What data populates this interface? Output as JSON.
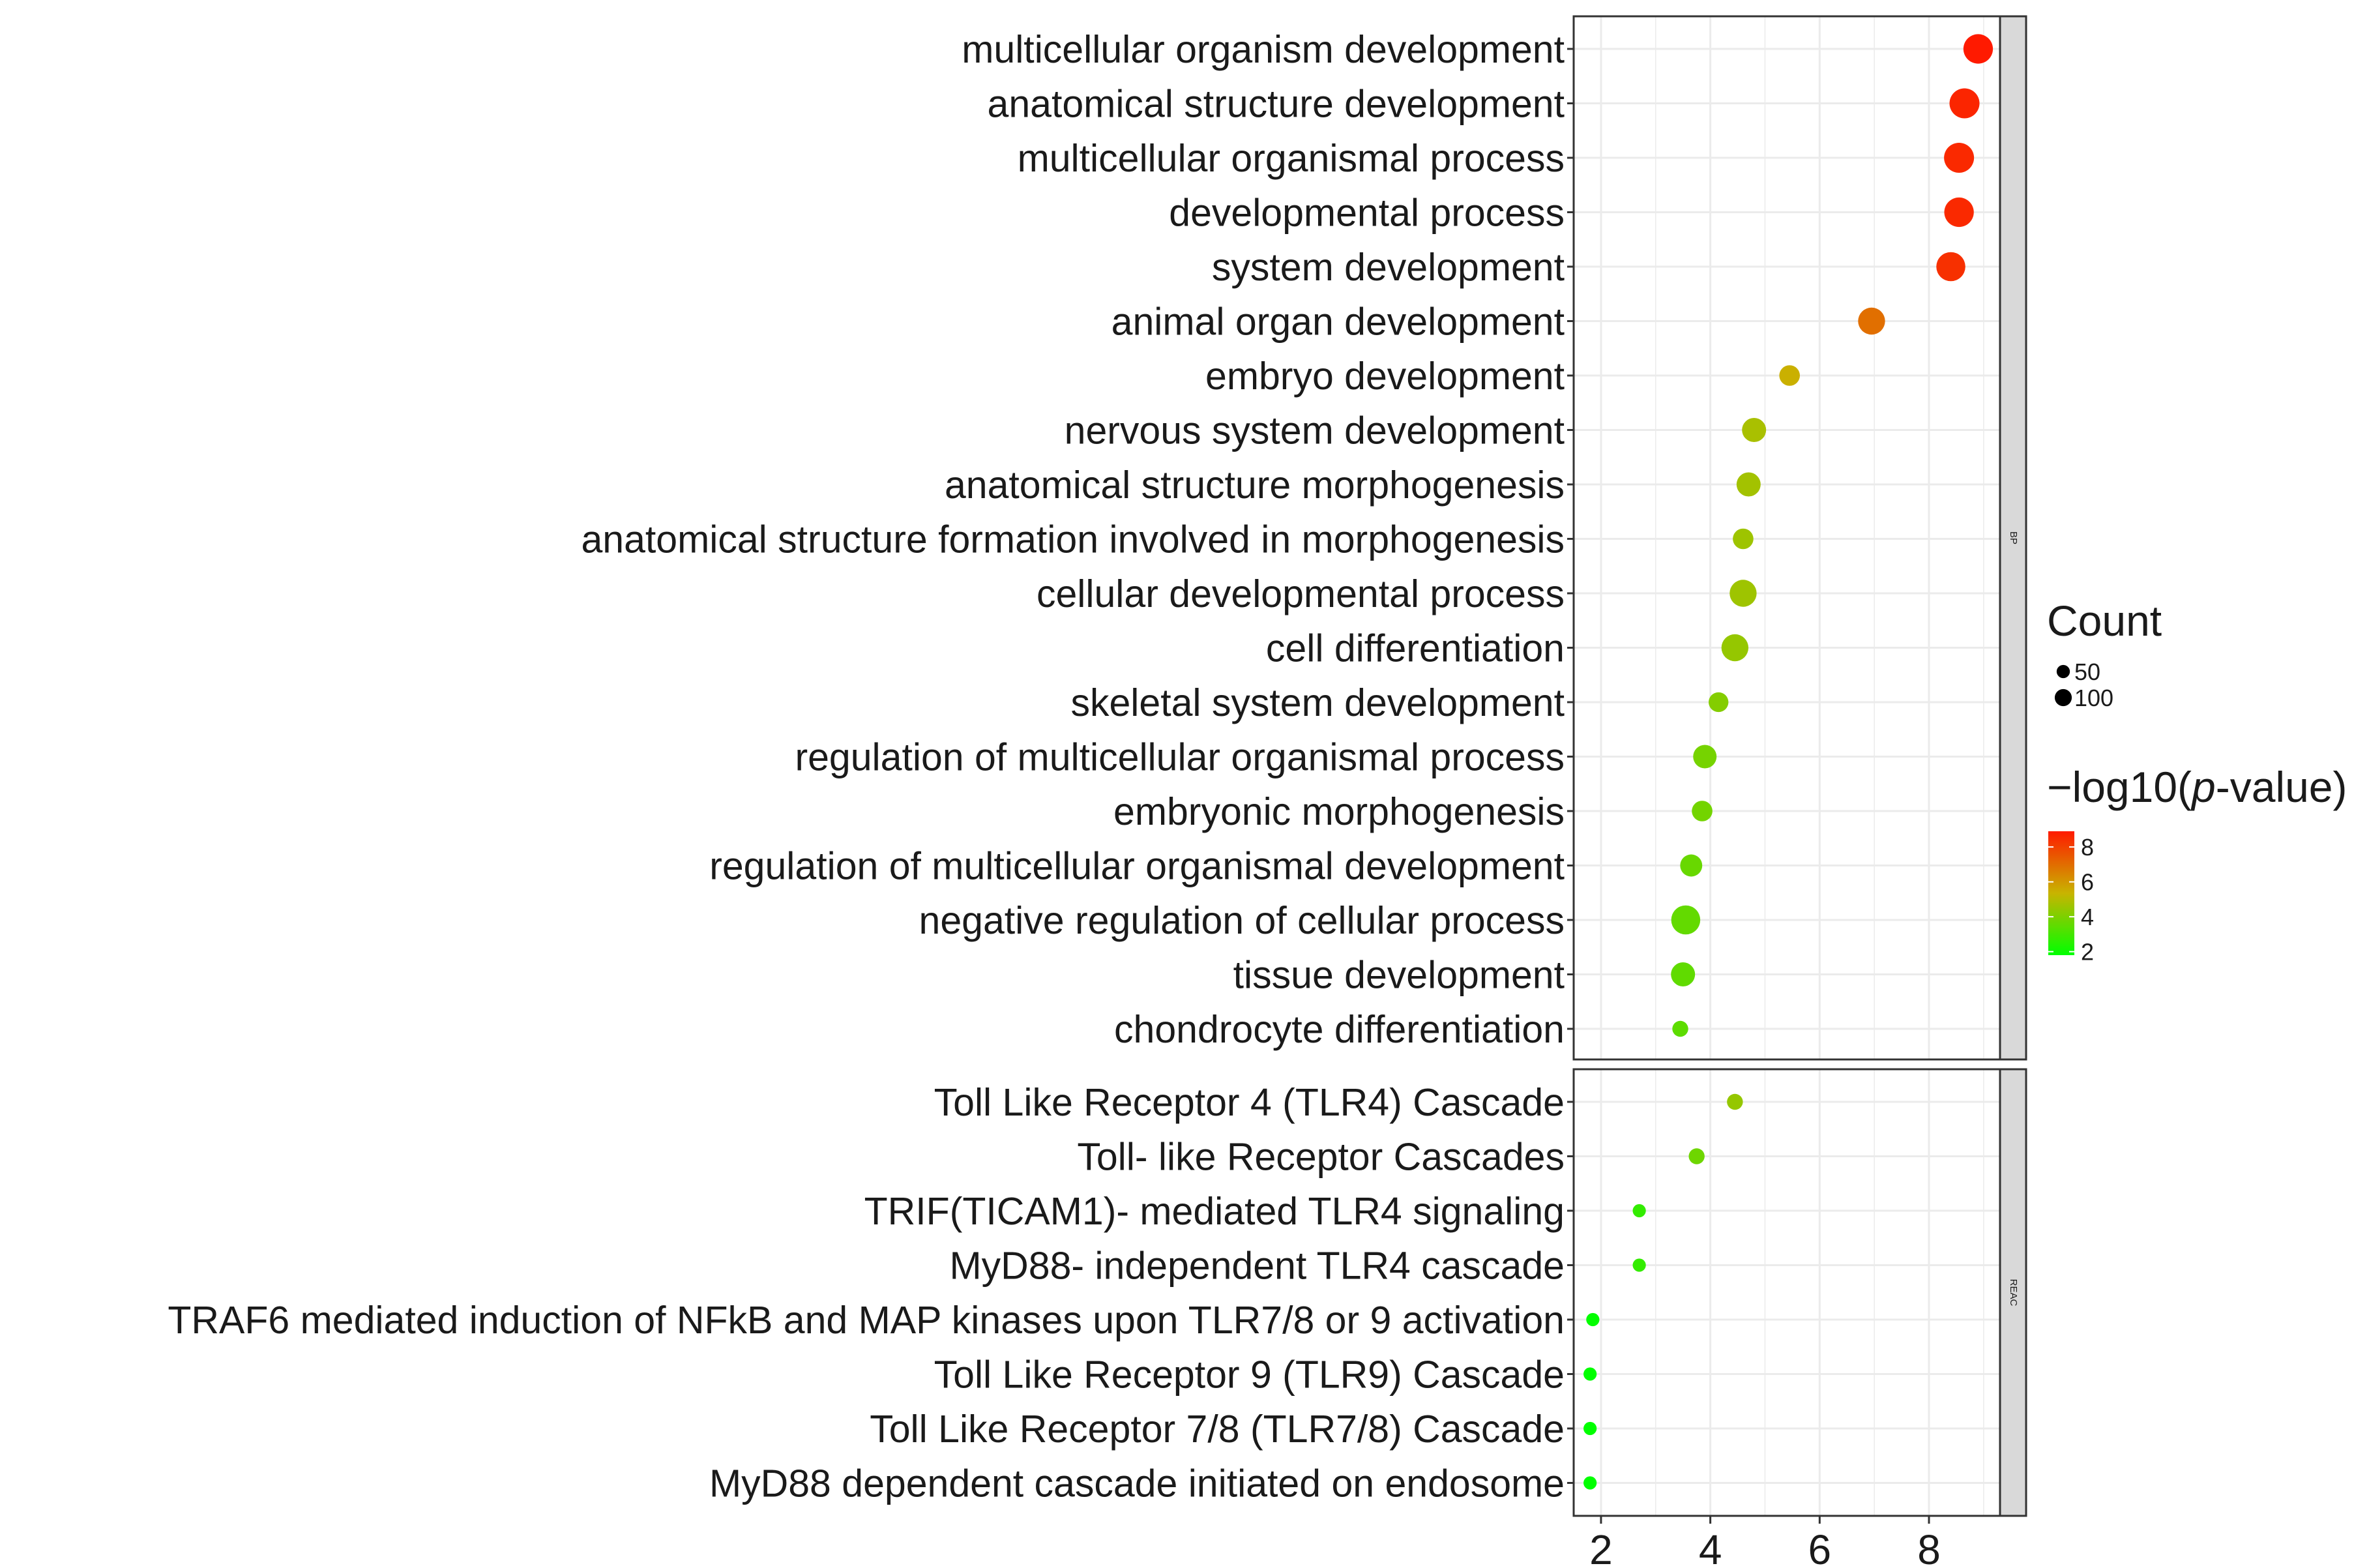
{
  "chart_data": {
    "type": "scatter",
    "x_axis": {
      "lim": [
        1.5,
        9.3
      ],
      "ticks": [
        2,
        4,
        6,
        8
      ],
      "tick_labels": [
        "2",
        "4",
        "6",
        "8"
      ]
    },
    "facets": [
      {
        "strip_label": "BP",
        "points": [
          {
            "term": "multicellular organism development",
            "x": 8.9,
            "count": 120,
            "neglog10p": 8.9
          },
          {
            "term": "anatomical structure development",
            "x": 8.65,
            "count": 125,
            "neglog10p": 8.65
          },
          {
            "term": "multicellular organismal process",
            "x": 8.55,
            "count": 125,
            "neglog10p": 8.55
          },
          {
            "term": "developmental process",
            "x": 8.55,
            "count": 120,
            "neglog10p": 8.55
          },
          {
            "term": "system development",
            "x": 8.4,
            "count": 115,
            "neglog10p": 8.4
          },
          {
            "term": "animal organ development",
            "x": 6.95,
            "count": 95,
            "neglog10p": 6.95
          },
          {
            "term": "embryo development",
            "x": 5.45,
            "count": 45,
            "neglog10p": 5.45
          },
          {
            "term": "nervous system development",
            "x": 4.8,
            "count": 70,
            "neglog10p": 4.8
          },
          {
            "term": "anatomical structure morphogenesis",
            "x": 4.7,
            "count": 70,
            "neglog10p": 4.7
          },
          {
            "term": "anatomical structure formation involved in morphogenesis",
            "x": 4.6,
            "count": 45,
            "neglog10p": 4.6
          },
          {
            "term": "cellular developmental process",
            "x": 4.6,
            "count": 95,
            "neglog10p": 4.6
          },
          {
            "term": "cell differentiation",
            "x": 4.45,
            "count": 95,
            "neglog10p": 4.45
          },
          {
            "term": "skeletal system development",
            "x": 4.15,
            "count": 40,
            "neglog10p": 4.15
          },
          {
            "term": "regulation of multicellular organismal process",
            "x": 3.9,
            "count": 65,
            "neglog10p": 3.9
          },
          {
            "term": "embryonic morphogenesis",
            "x": 3.85,
            "count": 45,
            "neglog10p": 3.85
          },
          {
            "term": "regulation of multicellular organismal development",
            "x": 3.65,
            "count": 55,
            "neglog10p": 3.65
          },
          {
            "term": "negative regulation of cellular process",
            "x": 3.55,
            "count": 115,
            "neglog10p": 3.55
          },
          {
            "term": "tissue development",
            "x": 3.5,
            "count": 70,
            "neglog10p": 3.5
          },
          {
            "term": "chondrocyte differentiation",
            "x": 3.45,
            "count": 20,
            "neglog10p": 3.45
          }
        ]
      },
      {
        "strip_label": "REAC",
        "points": [
          {
            "term": "Toll Like Receptor 4 (TLR4) Cascade",
            "x": 4.45,
            "count": 20,
            "neglog10p": 4.45
          },
          {
            "term": "Toll- like Receptor Cascades",
            "x": 3.75,
            "count": 20,
            "neglog10p": 3.75
          },
          {
            "term": "TRIF(TICAM1)- mediated TLR4 signaling",
            "x": 2.7,
            "count": 10,
            "neglog10p": 2.7
          },
          {
            "term": "MyD88- independent TLR4 cascade",
            "x": 2.7,
            "count": 10,
            "neglog10p": 2.7
          },
          {
            "term": "TRAF6 mediated induction of NFkB and MAP kinases upon TLR7/8 or 9 activation",
            "x": 1.85,
            "count": 10,
            "neglog10p": 1.85
          },
          {
            "term": "Toll Like Receptor 9 (TLR9) Cascade",
            "x": 1.8,
            "count": 10,
            "neglog10p": 1.8
          },
          {
            "term": "Toll Like Receptor 7/8 (TLR7/8) Cascade",
            "x": 1.8,
            "count": 10,
            "neglog10p": 1.8
          },
          {
            "term": "MyD88 dependent cascade initiated on endosome",
            "x": 1.8,
            "count": 10,
            "neglog10p": 1.8
          }
        ]
      }
    ],
    "legend": {
      "size": {
        "title": "Count",
        "values": [
          50,
          100
        ],
        "labels": [
          "50",
          "100"
        ]
      },
      "color": {
        "title_prefix": "−log10(",
        "title_italic": "p",
        "title_suffix": "-value)",
        "ticks": [
          2,
          4,
          6,
          8
        ],
        "tick_labels": [
          "2",
          "4",
          "6",
          "8"
        ],
        "range": [
          1.8,
          8.9
        ],
        "low_color": "#00ff00",
        "mid_color": "#c8b400",
        "high_color": "#ff1a00"
      }
    },
    "colors": {
      "panel_border": "#333333",
      "grid": "#ebebeb",
      "strip_fill": "#d9d9d9"
    }
  }
}
